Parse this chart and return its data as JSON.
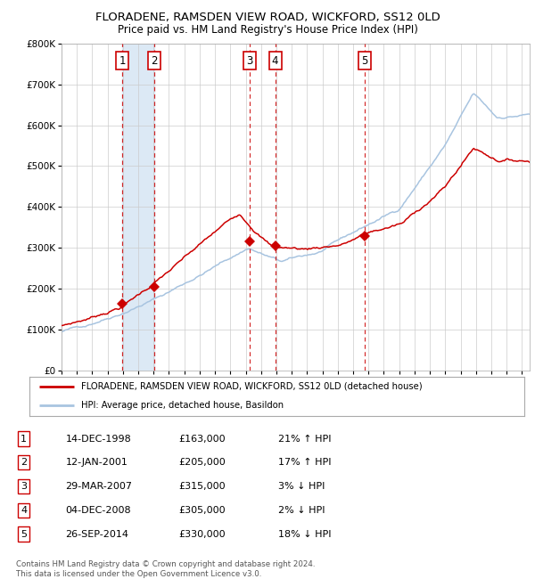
{
  "title": "FLORADENE, RAMSDEN VIEW ROAD, WICKFORD, SS12 0LD",
  "subtitle": "Price paid vs. HM Land Registry's House Price Index (HPI)",
  "ylim": [
    0,
    800000
  ],
  "yticks": [
    0,
    100000,
    200000,
    300000,
    400000,
    500000,
    600000,
    700000,
    800000
  ],
  "ytick_labels": [
    "£0",
    "£100K",
    "£200K",
    "£300K",
    "£400K",
    "£500K",
    "£600K",
    "£700K",
    "£800K"
  ],
  "x_start_year": 1995,
  "x_end_year": 2025,
  "sale_dates_num": [
    1998.96,
    2001.04,
    2007.24,
    2008.92,
    2014.73
  ],
  "sale_prices": [
    163000,
    205000,
    315000,
    305000,
    330000
  ],
  "sale_labels": [
    "1",
    "2",
    "3",
    "4",
    "5"
  ],
  "shade_ranges": [
    [
      1998.96,
      2001.04
    ]
  ],
  "dashed_lines": [
    1998.96,
    2001.04,
    2007.24,
    2008.92,
    2014.73
  ],
  "hpi_color": "#a8c4e0",
  "sale_line_color": "#cc0000",
  "sale_marker_color": "#cc0000",
  "shade_color": "#dce9f5",
  "dashed_line_color": "#cc0000",
  "grid_color": "#cccccc",
  "bg_color": "#ffffff",
  "legend_line1": "FLORADENE, RAMSDEN VIEW ROAD, WICKFORD, SS12 0LD (detached house)",
  "legend_line2": "HPI: Average price, detached house, Basildon",
  "table_rows": [
    [
      "1",
      "14-DEC-1998",
      "£163,000",
      "21% ↑ HPI"
    ],
    [
      "2",
      "12-JAN-2001",
      "£205,000",
      "17% ↑ HPI"
    ],
    [
      "3",
      "29-MAR-2007",
      "£315,000",
      "3% ↓ HPI"
    ],
    [
      "4",
      "04-DEC-2008",
      "£305,000",
      "2% ↓ HPI"
    ],
    [
      "5",
      "26-SEP-2014",
      "£330,000",
      "18% ↓ HPI"
    ]
  ],
  "footer": "Contains HM Land Registry data © Crown copyright and database right 2024.\nThis data is licensed under the Open Government Licence v3.0.",
  "label_box_color": "#ffffff",
  "label_box_edge": "#cc0000"
}
